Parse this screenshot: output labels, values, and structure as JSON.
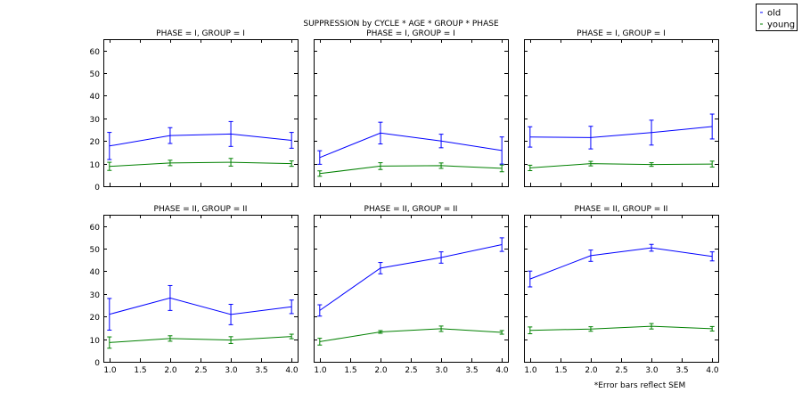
{
  "title": "SUPPRESSION by CYCLE * AGE * GROUP * PHASE",
  "footnote": "*Error bars reflect SEM",
  "legend": {
    "placement": "top-right, outside plot area",
    "entries": [
      {
        "label": "old",
        "color": "#0000ff"
      },
      {
        "label": "young",
        "color": "#008000"
      }
    ]
  },
  "chart_data": {
    "type": "line",
    "layout": {
      "rows": 2,
      "cols": 3,
      "shared_axes": true
    },
    "xlim": [
      0.9,
      4.1
    ],
    "ylim": [
      0,
      65
    ],
    "xticks": [
      1.0,
      1.5,
      2.0,
      2.5,
      3.0,
      3.5,
      4.0
    ],
    "yticks": [
      0,
      10,
      20,
      30,
      40,
      50,
      60
    ],
    "grid": false,
    "panels": [
      {
        "title": "PHASE = I, GROUP = I",
        "series": [
          {
            "name": "old",
            "x": [
              1,
              2,
              3,
              4
            ],
            "y": [
              17.8,
              22.4,
              23.1,
              20.3
            ],
            "err": [
              6.0,
              3.5,
              5.5,
              3.5
            ]
          },
          {
            "name": "young",
            "x": [
              1,
              2,
              3,
              4
            ],
            "y": [
              8.8,
              10.3,
              10.6,
              10.0
            ],
            "err": [
              1.8,
              1.2,
              1.7,
              1.2
            ]
          }
        ]
      },
      {
        "title": "PHASE = I, GROUP = I",
        "series": [
          {
            "name": "old",
            "x": [
              1,
              2,
              3,
              4
            ],
            "y": [
              12.7,
              23.5,
              20.0,
              15.8
            ],
            "err": [
              3.0,
              4.8,
              3.0,
              6.0
            ]
          },
          {
            "name": "young",
            "x": [
              1,
              2,
              3,
              4
            ],
            "y": [
              5.6,
              8.9,
              9.1,
              7.9
            ],
            "err": [
              1.2,
              1.5,
              1.2,
              1.5
            ]
          }
        ]
      },
      {
        "title": "PHASE = I, GROUP = I",
        "series": [
          {
            "name": "old",
            "x": [
              1,
              2,
              3,
              4
            ],
            "y": [
              21.8,
              21.5,
              23.7,
              26.4
            ],
            "err": [
              4.5,
              5.0,
              5.5,
              5.5
            ]
          },
          {
            "name": "young",
            "x": [
              1,
              2,
              3,
              4
            ],
            "y": [
              8.1,
              10.0,
              9.6,
              9.8
            ],
            "err": [
              1.2,
              1.0,
              0.8,
              1.3
            ]
          }
        ]
      },
      {
        "title": "PHASE = II, GROUP = II",
        "series": [
          {
            "name": "old",
            "x": [
              1,
              2,
              3,
              4
            ],
            "y": [
              21.0,
              28.2,
              20.9,
              24.3
            ],
            "err": [
              7.0,
              5.5,
              4.5,
              3.0
            ]
          },
          {
            "name": "young",
            "x": [
              1,
              2,
              3,
              4
            ],
            "y": [
              8.5,
              10.3,
              9.6,
              11.2
            ],
            "err": [
              2.5,
              1.2,
              1.5,
              1.0
            ]
          }
        ]
      },
      {
        "title": "PHASE = II, GROUP = II",
        "series": [
          {
            "name": "old",
            "x": [
              1,
              2,
              3,
              4
            ],
            "y": [
              22.7,
              41.4,
              46.1,
              51.8
            ],
            "err": [
              2.5,
              2.5,
              2.5,
              3.0
            ]
          },
          {
            "name": "young",
            "x": [
              1,
              2,
              3,
              4
            ],
            "y": [
              8.9,
              13.2,
              14.6,
              13.0
            ],
            "err": [
              1.5,
              0.6,
              1.2,
              0.8
            ]
          }
        ]
      },
      {
        "title": "PHASE = II, GROUP = II",
        "series": [
          {
            "name": "old",
            "x": [
              1,
              2,
              3,
              4
            ],
            "y": [
              36.6,
              46.9,
              50.4,
              46.6
            ],
            "err": [
              3.5,
              2.5,
              1.5,
              2.0
            ]
          },
          {
            "name": "young",
            "x": [
              1,
              2,
              3,
              4
            ],
            "y": [
              13.9,
              14.5,
              15.7,
              14.6
            ],
            "err": [
              1.5,
              1.0,
              1.2,
              1.0
            ]
          }
        ]
      }
    ]
  }
}
